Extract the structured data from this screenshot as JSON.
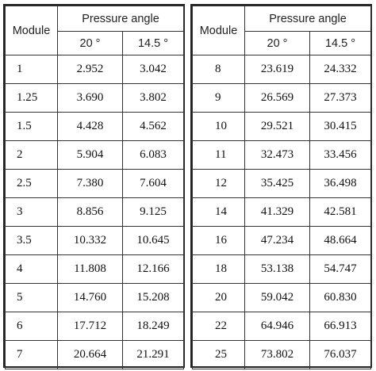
{
  "headers": {
    "module": "Module",
    "pressure_angle": "Pressure angle",
    "angle_20": "20 °",
    "angle_14_5": "14.5 °"
  },
  "left_table": {
    "rows": [
      {
        "module": "1",
        "a20": "2.952",
        "a145": "3.042"
      },
      {
        "module": "1.25",
        "a20": "3.690",
        "a145": "3.802"
      },
      {
        "module": "1.5",
        "a20": "4.428",
        "a145": "4.562"
      },
      {
        "module": "2",
        "a20": "5.904",
        "a145": "6.083"
      },
      {
        "module": "2.5",
        "a20": "7.380",
        "a145": "7.604"
      },
      {
        "module": "3",
        "a20": "8.856",
        "a145": "9.125"
      },
      {
        "module": "3.5",
        "a20": "10.332",
        "a145": "10.645"
      },
      {
        "module": "4",
        "a20": "11.808",
        "a145": "12.166"
      },
      {
        "module": "5",
        "a20": "14.760",
        "a145": "15.208"
      },
      {
        "module": "6",
        "a20": "17.712",
        "a145": "18.249"
      },
      {
        "module": "7",
        "a20": "20.664",
        "a145": "21.291"
      }
    ]
  },
  "right_table": {
    "rows": [
      {
        "module": "8",
        "a20": "23.619",
        "a145": "24.332"
      },
      {
        "module": "9",
        "a20": "26.569",
        "a145": "27.373"
      },
      {
        "module": "10",
        "a20": "29.521",
        "a145": "30.415"
      },
      {
        "module": "11",
        "a20": "32.473",
        "a145": "33.456"
      },
      {
        "module": "12",
        "a20": "35.425",
        "a145": "36.498"
      },
      {
        "module": "14",
        "a20": "41.329",
        "a145": "42.581"
      },
      {
        "module": "16",
        "a20": "47.234",
        "a145": "48.664"
      },
      {
        "module": "18",
        "a20": "53.138",
        "a145": "54.747"
      },
      {
        "module": "20",
        "a20": "59.042",
        "a145": "60.830"
      },
      {
        "module": "22",
        "a20": "64.946",
        "a145": "66.913"
      },
      {
        "module": "25",
        "a20": "73.802",
        "a145": "76.037"
      }
    ]
  }
}
